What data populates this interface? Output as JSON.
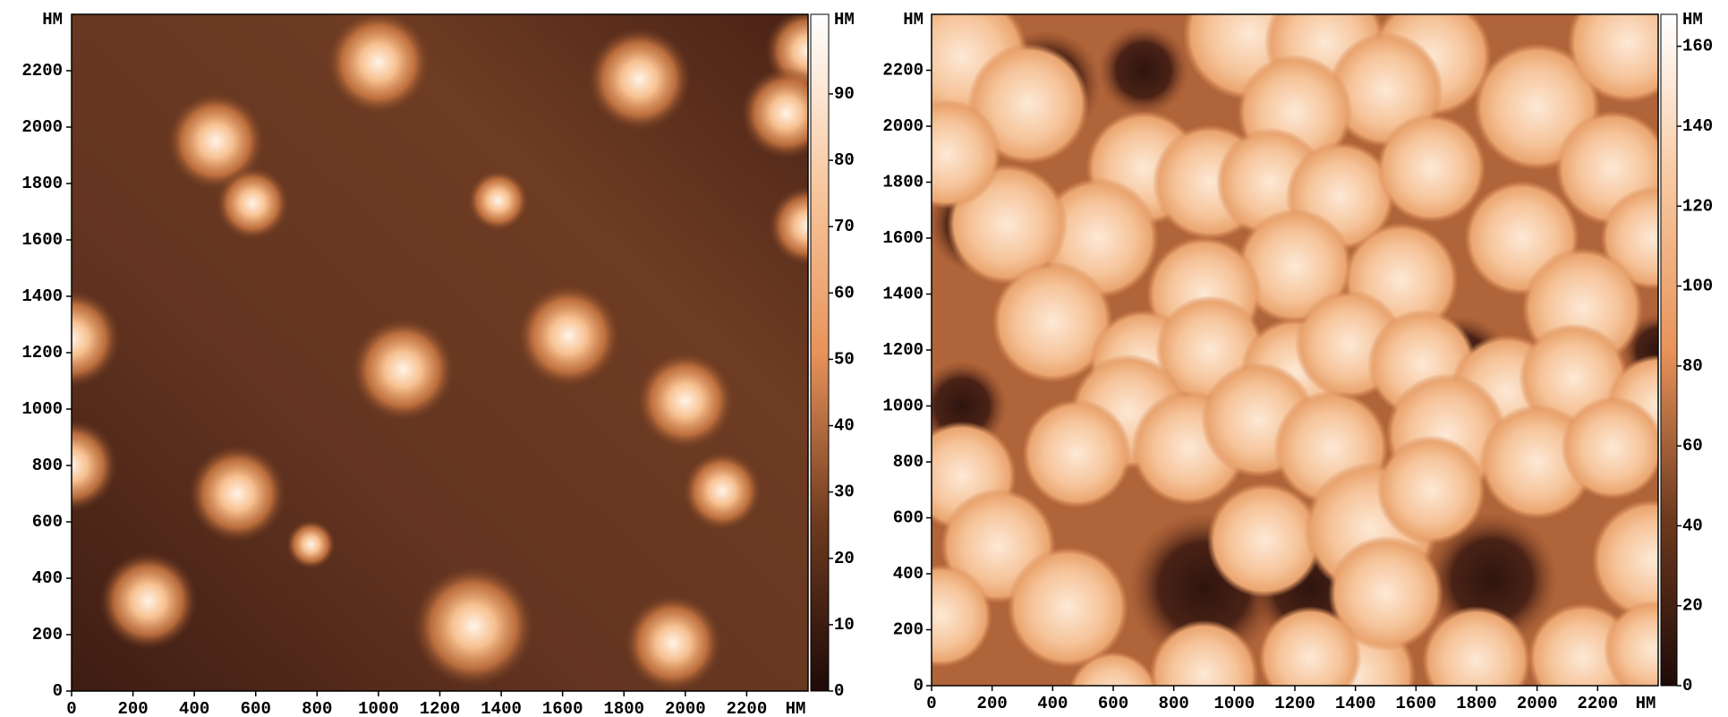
{
  "chart_data": [
    {
      "type": "image",
      "unit": "НМ",
      "xlim": [
        0,
        2400
      ],
      "xticks": [
        0,
        200,
        400,
        600,
        800,
        1000,
        1200,
        1400,
        1600,
        1800,
        2000,
        2200
      ],
      "ylim": [
        0,
        2400
      ],
      "yticks": [
        0,
        200,
        400,
        600,
        800,
        1000,
        1200,
        1400,
        1600,
        1800,
        2000,
        2200
      ],
      "clim": [
        0,
        102
      ],
      "cticks": [
        0,
        10,
        20,
        30,
        40,
        50,
        60,
        70,
        80,
        90
      ],
      "colormap": [
        "#1e0a08",
        "#6e3a1e",
        "#e8935a",
        "#f8c8a0",
        "#ffffff"
      ]
    },
    {
      "type": "image",
      "unit": "НМ",
      "xlim": [
        0,
        2400
      ],
      "xticks": [
        0,
        200,
        400,
        600,
        800,
        1000,
        1200,
        1400,
        1600,
        1800,
        2000,
        2200
      ],
      "ylim": [
        0,
        2400
      ],
      "yticks": [
        0,
        200,
        400,
        600,
        800,
        1000,
        1200,
        1400,
        1600,
        1800,
        2000,
        2200
      ],
      "clim": [
        0,
        168
      ],
      "cticks": [
        0,
        20,
        40,
        60,
        80,
        100,
        120,
        140,
        160
      ],
      "colormap": [
        "#1e0a08",
        "#6e3a1e",
        "#e8935a",
        "#f8c8a0",
        "#ffffff"
      ]
    }
  ]
}
